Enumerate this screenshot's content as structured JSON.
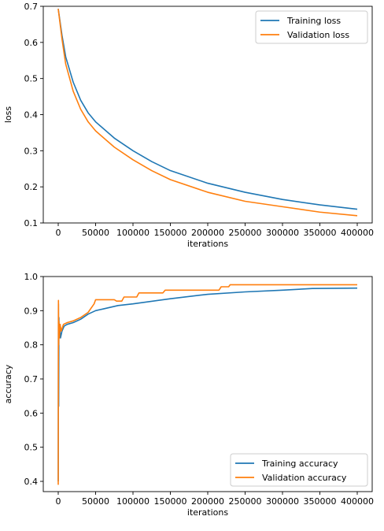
{
  "chart_data": [
    {
      "type": "line",
      "title": "",
      "xlabel": "iterations",
      "ylabel": "loss",
      "xlim": [
        -20000,
        420000
      ],
      "ylim": [
        0.1,
        0.7
      ],
      "xticks": [
        0,
        50000,
        100000,
        150000,
        200000,
        250000,
        300000,
        350000,
        400000
      ],
      "yticks": [
        0.1,
        0.2,
        0.3,
        0.4,
        0.5,
        0.6,
        0.7
      ],
      "grid": false,
      "legend": "top-right",
      "series": [
        {
          "name": "Training  loss",
          "color": "#1f77b4",
          "points": [
            [
              0,
              0.693
            ],
            [
              5000,
              0.62
            ],
            [
              10000,
              0.56
            ],
            [
              20000,
              0.49
            ],
            [
              30000,
              0.44
            ],
            [
              40000,
              0.405
            ],
            [
              50000,
              0.38
            ],
            [
              75000,
              0.335
            ],
            [
              100000,
              0.3
            ],
            [
              125000,
              0.27
            ],
            [
              150000,
              0.245
            ],
            [
              200000,
              0.21
            ],
            [
              250000,
              0.185
            ],
            [
              300000,
              0.165
            ],
            [
              350000,
              0.15
            ],
            [
              400000,
              0.138
            ]
          ]
        },
        {
          "name": "Validation  loss",
          "color": "#ff7f0e",
          "points": [
            [
              0,
              0.693
            ],
            [
              5000,
              0.61
            ],
            [
              10000,
              0.54
            ],
            [
              20000,
              0.465
            ],
            [
              30000,
              0.415
            ],
            [
              40000,
              0.38
            ],
            [
              50000,
              0.355
            ],
            [
              75000,
              0.31
            ],
            [
              100000,
              0.275
            ],
            [
              125000,
              0.245
            ],
            [
              150000,
              0.22
            ],
            [
              200000,
              0.185
            ],
            [
              250000,
              0.16
            ],
            [
              300000,
              0.145
            ],
            [
              350000,
              0.13
            ],
            [
              400000,
              0.12
            ]
          ]
        }
      ]
    },
    {
      "type": "line",
      "title": "",
      "xlabel": "iterations",
      "ylabel": "accuracy",
      "xlim": [
        -20000,
        420000
      ],
      "ylim": [
        0.37,
        1.0
      ],
      "xticks": [
        0,
        50000,
        100000,
        150000,
        200000,
        250000,
        300000,
        350000,
        400000
      ],
      "yticks": [
        0.4,
        0.5,
        0.6,
        0.7,
        0.8,
        0.9,
        1.0
      ],
      "grid": false,
      "legend": "bottom-right",
      "series": [
        {
          "name": "Training  accuracy",
          "color": "#1f77b4",
          "points": [
            [
              0,
              0.4
            ],
            [
              300,
              0.92
            ],
            [
              600,
              0.62
            ],
            [
              900,
              0.88
            ],
            [
              1200,
              0.83
            ],
            [
              2000,
              0.86
            ],
            [
              3000,
              0.82
            ],
            [
              5000,
              0.84
            ],
            [
              8000,
              0.855
            ],
            [
              12000,
              0.86
            ],
            [
              20000,
              0.865
            ],
            [
              30000,
              0.875
            ],
            [
              40000,
              0.89
            ],
            [
              50000,
              0.9
            ],
            [
              60000,
              0.905
            ],
            [
              80000,
              0.915
            ],
            [
              100000,
              0.92
            ],
            [
              150000,
              0.935
            ],
            [
              200000,
              0.948
            ],
            [
              250000,
              0.955
            ],
            [
              300000,
              0.96
            ],
            [
              340000,
              0.965
            ],
            [
              400000,
              0.966
            ]
          ]
        },
        {
          "name": "Validation  accuracy",
          "color": "#ff7f0e",
          "points": [
            [
              0,
              0.39
            ],
            [
              300,
              0.93
            ],
            [
              600,
              0.8
            ],
            [
              900,
              0.87
            ],
            [
              1500,
              0.82
            ],
            [
              2500,
              0.86
            ],
            [
              4000,
              0.84
            ],
            [
              7000,
              0.86
            ],
            [
              12000,
              0.865
            ],
            [
              20000,
              0.87
            ],
            [
              30000,
              0.88
            ],
            [
              40000,
              0.895
            ],
            [
              48000,
              0.92
            ],
            [
              50000,
              0.932
            ],
            [
              75000,
              0.932
            ],
            [
              78000,
              0.928
            ],
            [
              85000,
              0.928
            ],
            [
              88000,
              0.94
            ],
            [
              105000,
              0.94
            ],
            [
              108000,
              0.952
            ],
            [
              140000,
              0.952
            ],
            [
              143000,
              0.96
            ],
            [
              215000,
              0.96
            ],
            [
              218000,
              0.97
            ],
            [
              228000,
              0.97
            ],
            [
              230000,
              0.976
            ],
            [
              400000,
              0.976
            ]
          ]
        }
      ]
    }
  ]
}
